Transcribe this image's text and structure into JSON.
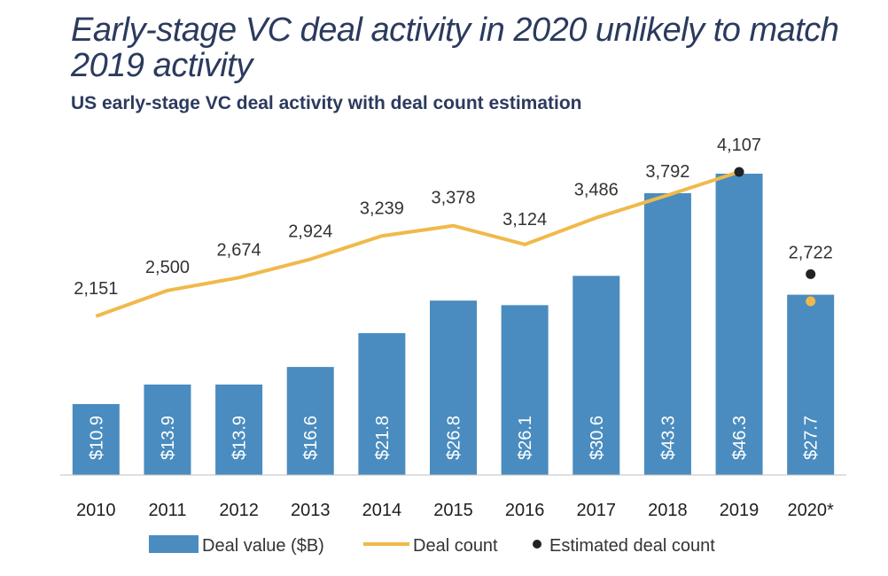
{
  "title": "Early-stage VC deal activity in 2020 unlikely to match 2019 activity",
  "subtitle": "US early-stage VC deal activity with deal count estimation",
  "chart_data": {
    "type": "bar",
    "categories": [
      "2010",
      "2011",
      "2012",
      "2013",
      "2014",
      "2015",
      "2016",
      "2017",
      "2018",
      "2019",
      "2020*"
    ],
    "bar_labels": [
      "$10.9",
      "$13.9",
      "$13.9",
      "$16.6",
      "$21.8",
      "$26.8",
      "$26.1",
      "$30.6",
      "$43.3",
      "$46.3",
      "$27.7"
    ],
    "count_labels": [
      "2,151",
      "2,500",
      "2,674",
      "2,924",
      "3,239",
      "3,378",
      "3,124",
      "3,486",
      "3,792",
      "4,107",
      "2,722"
    ],
    "series": [
      {
        "name": "Deal value ($B)",
        "type": "bar",
        "color": "#4a8cbf",
        "values": [
          10.9,
          13.9,
          13.9,
          16.6,
          21.8,
          26.8,
          26.1,
          30.6,
          43.3,
          46.3,
          27.7
        ]
      },
      {
        "name": "Deal count",
        "type": "line",
        "color": "#f0b94a",
        "values": [
          2151,
          2500,
          2674,
          2924,
          3239,
          3378,
          3124,
          3486,
          3792,
          4107,
          null
        ]
      },
      {
        "name": "Estimated deal count",
        "type": "point",
        "color": "#222222",
        "values": [
          null,
          null,
          null,
          null,
          null,
          null,
          null,
          null,
          null,
          4107,
          2722
        ]
      }
    ],
    "value_ylim": [
      0,
      52
    ],
    "count_ylim": [
      0,
      4600
    ],
    "legend": [
      "Deal value ($B)",
      "Deal count",
      "Estimated deal count"
    ],
    "legend_position": "bottom",
    "grid": false
  }
}
